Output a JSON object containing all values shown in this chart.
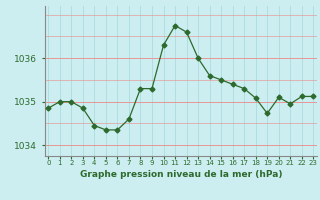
{
  "x": [
    0,
    1,
    2,
    3,
    4,
    5,
    6,
    7,
    8,
    9,
    10,
    11,
    12,
    13,
    14,
    15,
    16,
    17,
    18,
    19,
    20,
    21,
    22,
    23
  ],
  "y": [
    1034.85,
    1035.0,
    1035.0,
    1034.85,
    1034.45,
    1034.35,
    1034.35,
    1034.6,
    1035.3,
    1035.3,
    1036.3,
    1036.75,
    1036.6,
    1036.0,
    1035.6,
    1035.5,
    1035.4,
    1035.3,
    1035.08,
    1034.73,
    1035.1,
    1034.95,
    1035.12,
    1035.12
  ],
  "line_color": "#2d6a2d",
  "marker": "D",
  "marker_size": 2.5,
  "background_color": "#cceef0",
  "hgrid_color": "#ee8888",
  "vgrid_color": "#aadddd",
  "axis_color": "#2d6a2d",
  "xlabel": "Graphe pression niveau de la mer (hPa)",
  "yticks": [
    1034,
    1035,
    1036
  ],
  "xticks": [
    0,
    1,
    2,
    3,
    4,
    5,
    6,
    7,
    8,
    9,
    10,
    11,
    12,
    13,
    14,
    15,
    16,
    17,
    18,
    19,
    20,
    21,
    22,
    23
  ],
  "ylim": [
    1033.75,
    1037.2
  ],
  "xlim": [
    -0.3,
    23.3
  ]
}
